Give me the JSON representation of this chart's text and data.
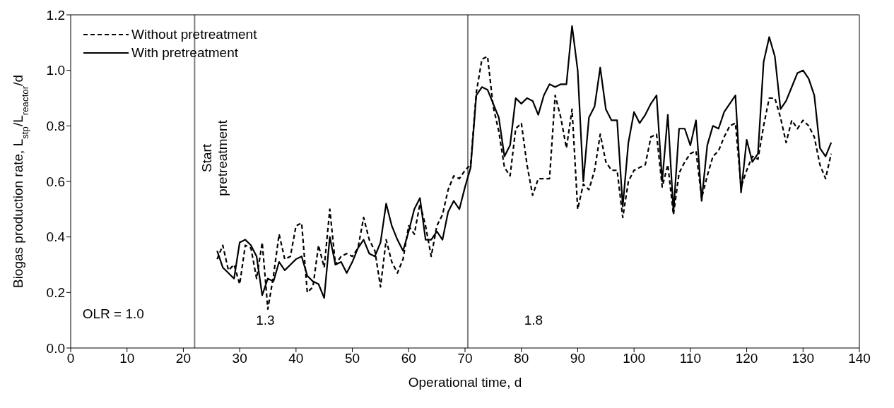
{
  "chart_data": {
    "type": "line",
    "xlabel": "Operational time, d",
    "ylabel": "Biogas production rate, L$_{stp}$/L$_{reactor}$/d",
    "x": [
      26,
      27,
      28,
      29,
      30,
      31,
      32,
      33,
      34,
      35,
      36,
      37,
      38,
      39,
      40,
      41,
      42,
      43,
      44,
      45,
      46,
      47,
      48,
      49,
      50,
      51,
      52,
      53,
      54,
      55,
      56,
      57,
      58,
      59,
      60,
      61,
      62,
      63,
      64,
      65,
      66,
      67,
      68,
      69,
      70,
      71,
      72,
      73,
      74,
      75,
      76,
      77,
      78,
      79,
      80,
      81,
      82,
      83,
      84,
      85,
      86,
      87,
      88,
      89,
      90,
      91,
      92,
      93,
      94,
      95,
      96,
      97,
      98,
      99,
      100,
      101,
      102,
      103,
      104,
      105,
      106,
      107,
      108,
      109,
      110,
      111,
      112,
      113,
      114,
      115,
      116,
      117,
      118,
      119,
      120,
      121,
      122,
      123,
      124,
      125,
      126,
      127,
      128,
      129,
      130,
      131,
      132,
      133,
      134,
      135
    ],
    "series": [
      {
        "name": "Without pretreatment",
        "color": "#000000",
        "line_style": "dashed",
        "values": [
          0.32,
          0.37,
          0.28,
          0.3,
          0.23,
          0.37,
          0.36,
          0.25,
          0.38,
          0.14,
          0.26,
          0.41,
          0.32,
          0.33,
          0.44,
          0.45,
          0.2,
          0.22,
          0.37,
          0.29,
          0.5,
          0.3,
          0.33,
          0.34,
          0.33,
          0.36,
          0.47,
          0.39,
          0.35,
          0.22,
          0.39,
          0.31,
          0.27,
          0.32,
          0.44,
          0.41,
          0.52,
          0.44,
          0.33,
          0.44,
          0.48,
          0.57,
          0.62,
          0.61,
          0.64,
          0.66,
          0.92,
          1.04,
          1.05,
          0.87,
          0.78,
          0.65,
          0.62,
          0.79,
          0.81,
          0.66,
          0.55,
          0.61,
          0.61,
          0.61,
          0.91,
          0.83,
          0.72,
          0.86,
          0.5,
          0.59,
          0.57,
          0.64,
          0.77,
          0.67,
          0.64,
          0.64,
          0.47,
          0.6,
          0.64,
          0.65,
          0.66,
          0.76,
          0.77,
          0.58,
          0.66,
          0.48,
          0.63,
          0.67,
          0.7,
          0.71,
          0.54,
          0.62,
          0.69,
          0.71,
          0.76,
          0.8,
          0.81,
          0.58,
          0.64,
          0.69,
          0.68,
          0.8,
          0.9,
          0.9,
          0.83,
          0.74,
          0.82,
          0.79,
          0.82,
          0.8,
          0.76,
          0.66,
          0.61,
          0.7
        ]
      },
      {
        "name": "With pretreatment",
        "color": "#000000",
        "line_style": "solid",
        "values": [
          0.35,
          0.29,
          0.27,
          0.25,
          0.38,
          0.39,
          0.37,
          0.33,
          0.19,
          0.25,
          0.24,
          0.31,
          0.28,
          0.3,
          0.32,
          0.33,
          0.26,
          0.24,
          0.23,
          0.18,
          0.4,
          0.3,
          0.31,
          0.27,
          0.31,
          0.36,
          0.39,
          0.34,
          0.33,
          0.38,
          0.52,
          0.44,
          0.39,
          0.35,
          0.42,
          0.5,
          0.54,
          0.39,
          0.39,
          0.42,
          0.39,
          0.49,
          0.53,
          0.5,
          0.58,
          0.65,
          0.91,
          0.94,
          0.93,
          0.88,
          0.83,
          0.69,
          0.73,
          0.9,
          0.88,
          0.9,
          0.89,
          0.84,
          0.91,
          0.95,
          0.94,
          0.95,
          0.95,
          1.16,
          1.0,
          0.6,
          0.83,
          0.87,
          1.01,
          0.86,
          0.82,
          0.82,
          0.51,
          0.74,
          0.85,
          0.81,
          0.84,
          0.88,
          0.91,
          0.6,
          0.84,
          0.49,
          0.79,
          0.79,
          0.73,
          0.82,
          0.53,
          0.73,
          0.8,
          0.79,
          0.85,
          0.88,
          0.91,
          0.56,
          0.75,
          0.67,
          0.7,
          1.03,
          1.12,
          1.05,
          0.86,
          0.89,
          0.94,
          0.99,
          1.0,
          0.97,
          0.91,
          0.72,
          0.69,
          0.74
        ]
      }
    ],
    "xlim": [
      0,
      140
    ],
    "xticks": [
      0,
      10,
      20,
      30,
      40,
      50,
      60,
      70,
      80,
      90,
      100,
      110,
      120,
      130,
      140
    ],
    "ylim": [
      0,
      1.2
    ],
    "yticks": [
      {
        "value": 0,
        "label": "0.0"
      },
      0.2,
      0.4,
      0.6,
      0.8,
      {
        "value": 1,
        "label": "1.0"
      },
      1.2
    ],
    "ref_lines": [
      {
        "axis": "x",
        "value": 22,
        "label": "Start pretreatment",
        "color": "#808080"
      },
      {
        "axis": "x",
        "value": 70.5,
        "color": "#808080"
      }
    ],
    "annotations": [
      "OLR = 1.0",
      "1.3",
      "1.8"
    ],
    "legend": "top left",
    "marker": "none",
    "grid": false
  }
}
